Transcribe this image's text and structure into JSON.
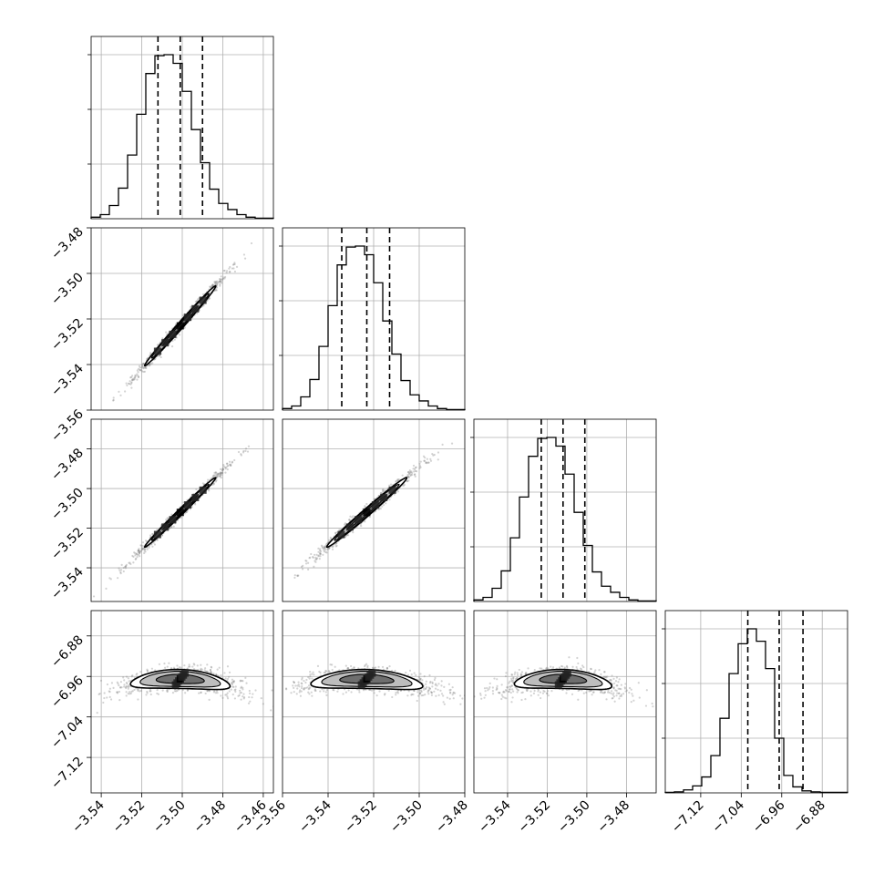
{
  "chart_data": {
    "type": "corner",
    "params": [
      {
        "name": "",
        "range": [
          -3.545,
          -3.455
        ],
        "ticks": [
          -3.54,
          -3.52,
          -3.5,
          -3.48,
          -3.46
        ],
        "tick_labels": [
          "−3.54",
          "−3.52",
          "−3.50",
          "−3.48",
          "−3.46"
        ]
      },
      {
        "name": "",
        "range": [
          -3.56,
          -3.48
        ],
        "ticks": [
          -3.56,
          -3.54,
          -3.52,
          -3.5,
          -3.48
        ],
        "tick_labels": [
          "−3.56",
          "−3.54",
          "−3.52",
          "−3.50",
          "−3.48"
        ]
      },
      {
        "name": "",
        "range": [
          -3.557,
          -3.465
        ],
        "ticks": [
          -3.54,
          -3.52,
          -3.5,
          -3.48
        ],
        "tick_labels": [
          "−3.54",
          "−3.52",
          "−3.50",
          "−3.48"
        ]
      },
      {
        "name": "",
        "range": [
          -7.19,
          -6.83
        ],
        "ticks": [
          -7.12,
          -7.04,
          -6.96,
          -6.88
        ],
        "tick_labels": [
          "−7.12",
          "−7.04",
          "−6.96",
          "−6.88"
        ]
      }
    ],
    "histograms": [
      {
        "param": 0,
        "counts": [
          3,
          8,
          26,
          60,
          125,
          205,
          285,
          320,
          322,
          305,
          250,
          175,
          110,
          58,
          30,
          18,
          8,
          3,
          1,
          1
        ],
        "quantiles": [
          -3.512,
          -3.501,
          -3.49
        ]
      },
      {
        "param": 1,
        "counts": [
          3,
          8,
          26,
          60,
          125,
          205,
          285,
          320,
          322,
          305,
          250,
          175,
          110,
          58,
          30,
          18,
          8,
          3,
          1,
          1
        ],
        "quantiles": [
          -3.534,
          -3.523,
          -3.513
        ]
      },
      {
        "param": 2,
        "counts": [
          3,
          8,
          26,
          60,
          125,
          205,
          285,
          320,
          322,
          305,
          250,
          175,
          110,
          58,
          30,
          18,
          8,
          3,
          1,
          1
        ],
        "quantiles": [
          -3.523,
          -3.512,
          -3.501
        ]
      },
      {
        "param": 3,
        "counts": [
          1,
          2,
          6,
          14,
          32,
          75,
          150,
          240,
          300,
          330,
          305,
          250,
          110,
          35,
          12,
          4,
          2,
          1,
          1,
          1
        ],
        "quantiles": [
          -7.027,
          -6.965,
          -6.918
        ]
      }
    ],
    "pairs": [
      {
        "x": 0,
        "y": 1,
        "center": [
          -3.501,
          -3.523
        ],
        "slope": 1.0,
        "sd_along": 0.016,
        "sd_across": 0.0009
      },
      {
        "x": 0,
        "y": 2,
        "center": [
          -3.501,
          -3.512
        ],
        "slope": 1.0,
        "sd_along": 0.016,
        "sd_across": 0.0009
      },
      {
        "x": 0,
        "y": 3,
        "center": [
          -3.501,
          -6.965
        ],
        "slope": 5.0,
        "sd_along": 0.012,
        "sd_across": 0.016
      },
      {
        "x": 1,
        "y": 2,
        "center": [
          -3.523,
          -3.512
        ],
        "slope": 1.0,
        "sd_along": 0.016,
        "sd_across": 0.0011
      },
      {
        "x": 1,
        "y": 3,
        "center": [
          -3.523,
          -6.965
        ],
        "slope": 5.0,
        "sd_along": 0.012,
        "sd_across": 0.016
      },
      {
        "x": 2,
        "y": 3,
        "center": [
          -3.512,
          -6.965
        ],
        "slope": 5.0,
        "sd_along": 0.012,
        "sd_across": 0.016
      }
    ],
    "grid": true,
    "colors": {
      "line": "#000000",
      "grid": "#b0b0b0",
      "points": "#808080",
      "contour_fill_1": "#bdbdbd",
      "contour_fill_2": "#6e6e6e"
    }
  }
}
